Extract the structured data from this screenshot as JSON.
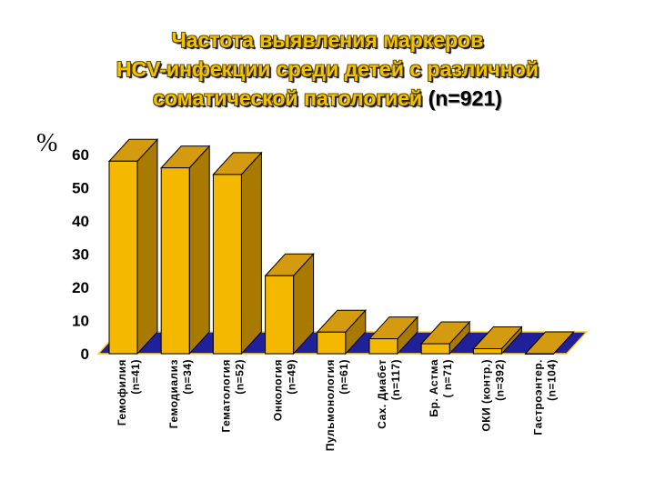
{
  "title": {
    "line1": "Частота выявления маркеров",
    "line2": "HCV-инфекции среди детей с различной",
    "line3": "соматической патологией ",
    "n": "(n=921)"
  },
  "y_unit": "%",
  "colors": {
    "bar_front": "#f5b800",
    "bar_side": "#a87a00",
    "bar_top": "#d49a10",
    "floor": "#20209a",
    "floor_edge": "#ffd21a",
    "title": "#f2c200"
  },
  "chart_data": {
    "type": "bar",
    "projection": "3d",
    "categories": [
      [
        "Гемофилия",
        "(n=41)"
      ],
      [
        "Гемодиализ",
        "(n=34)"
      ],
      [
        "Гематология",
        "(n=52)"
      ],
      [
        "Онкология",
        "(n=49)"
      ],
      [
        "Пульмонология",
        "(n=61)"
      ],
      [
        "Сах. Диабет",
        "(n=117)"
      ],
      [
        "Бр. Астма",
        "( n=71)"
      ],
      [
        "ОКИ (контр.)",
        "(n=392)"
      ],
      [
        "Гастроэнтер.",
        "(n=104)"
      ]
    ],
    "values": [
      58,
      56,
      54,
      23.5,
      6.5,
      4.5,
      3,
      1.5,
      0
    ],
    "ylim": [
      0,
      60
    ],
    "yticks": [
      0,
      10,
      20,
      30,
      40,
      50,
      60
    ],
    "grid": false
  }
}
